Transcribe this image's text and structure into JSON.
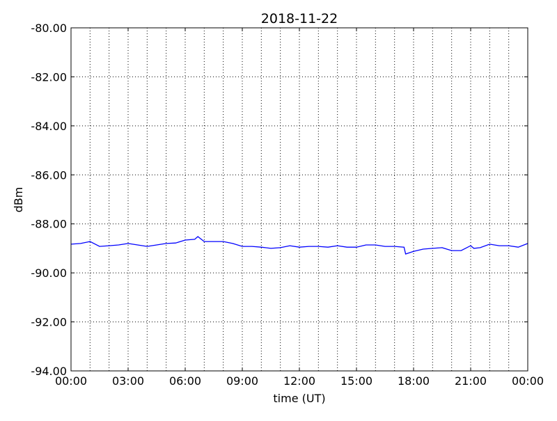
{
  "chart_data": {
    "type": "line",
    "title": "2018-11-22",
    "xlabel": "time (UT)",
    "ylabel": "dBm",
    "xlim": [
      "00:00",
      "24:00"
    ],
    "ylim": [
      -94,
      -80
    ],
    "x_tick_labels": [
      "00:00",
      "03:00",
      "06:00",
      "09:00",
      "12:00",
      "15:00",
      "18:00",
      "21:00",
      "00:00"
    ],
    "y_ticks": [
      -80,
      -82,
      -84,
      -86,
      -88,
      -90,
      -92,
      -94
    ],
    "y_tick_labels": [
      "-80.00",
      "-82.00",
      "-84.00",
      "-86.00",
      "-88.00",
      "-90.00",
      "-92.00",
      "-94.00"
    ],
    "grid": true,
    "line_color": "#0000ff",
    "series": [
      {
        "x": [
          "00:00",
          "00:30",
          "01:00",
          "01:30",
          "02:00",
          "02:30",
          "03:00",
          "03:30",
          "04:00",
          "04:30",
          "05:00",
          "05:30",
          "06:00",
          "06:30",
          "06:40",
          "07:00",
          "07:30",
          "08:00",
          "08:30",
          "09:00",
          "09:30",
          "10:00",
          "10:30",
          "11:00",
          "11:30",
          "12:00",
          "12:30",
          "13:00",
          "13:30",
          "14:00",
          "14:30",
          "15:00",
          "15:30",
          "16:00",
          "16:30",
          "17:00",
          "17:30",
          "17:35",
          "18:00",
          "18:30",
          "19:00",
          "19:30",
          "20:00",
          "20:30",
          "21:00",
          "21:10",
          "21:30",
          "22:00",
          "22:30",
          "23:00",
          "23:30",
          "24:00"
        ],
        "y": [
          -88.83,
          -88.8,
          -88.72,
          -88.92,
          -88.89,
          -88.86,
          -88.8,
          -88.86,
          -88.92,
          -88.86,
          -88.8,
          -88.78,
          -88.66,
          -88.63,
          -88.52,
          -88.72,
          -88.72,
          -88.72,
          -88.8,
          -88.92,
          -88.92,
          -88.95,
          -89.0,
          -88.97,
          -88.89,
          -88.95,
          -88.92,
          -88.92,
          -88.95,
          -88.89,
          -88.95,
          -88.95,
          -88.86,
          -88.86,
          -88.92,
          -88.92,
          -88.95,
          -89.23,
          -89.12,
          -89.03,
          -89.0,
          -88.97,
          -89.09,
          -89.09,
          -88.89,
          -89.0,
          -88.97,
          -88.83,
          -88.89,
          -88.89,
          -88.95,
          -88.8
        ]
      }
    ]
  }
}
